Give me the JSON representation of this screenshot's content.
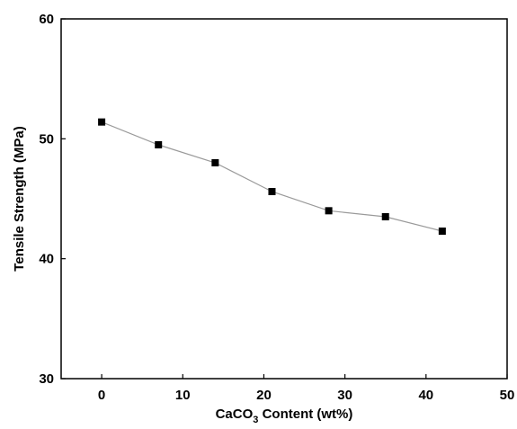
{
  "chart_data": {
    "type": "line",
    "title": "",
    "xlabel": {
      "prefix": "CaCO",
      "subscript": "3",
      "suffix": " Content (wt%)"
    },
    "ylabel": "Tensile Strength (MPa)",
    "xlim": [
      -5,
      50
    ],
    "ylim": [
      30,
      60
    ],
    "xticks": [
      0,
      10,
      20,
      30,
      40,
      50
    ],
    "yticks": [
      30,
      40,
      50,
      60
    ],
    "grid": false,
    "legend": "none",
    "series": [
      {
        "marker": "square",
        "color": "#000000",
        "line_color": "#9a9a9a",
        "x": [
          0,
          7,
          14,
          21,
          28,
          35,
          42
        ],
        "y": [
          51.4,
          49.5,
          48.0,
          45.6,
          44.0,
          43.5,
          42.3
        ]
      }
    ]
  }
}
